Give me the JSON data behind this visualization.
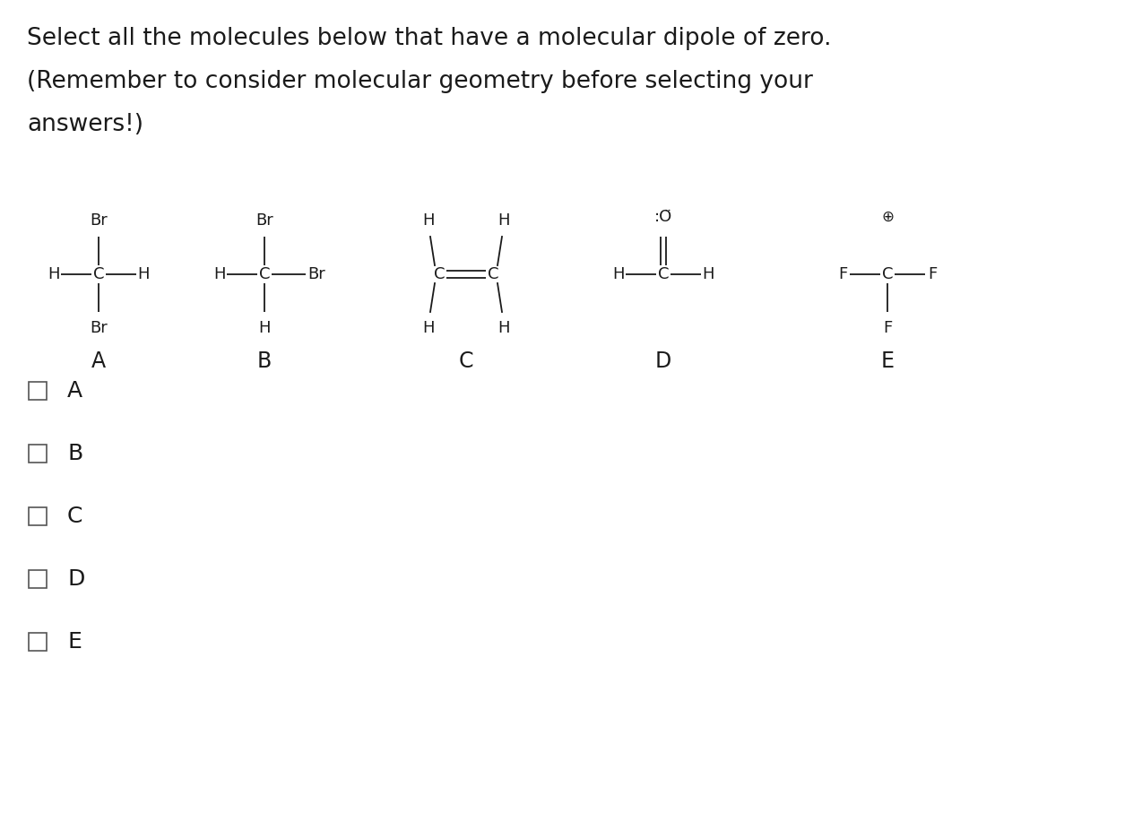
{
  "title_line1": "Select all the molecules below that have a molecular dipole of zero.",
  "title_line2": "(Remember to consider molecular geometry before selecting your",
  "title_line3": "answers!)",
  "bg_color": "#ffffff",
  "text_color": "#1a1a1a",
  "molecule_labels": [
    "A",
    "B",
    "C",
    "D",
    "E"
  ],
  "checkbox_labels": [
    "A",
    "B",
    "C",
    "D",
    "E"
  ],
  "font_size_title": 19,
  "font_size_mol": 12,
  "font_size_label": 15
}
